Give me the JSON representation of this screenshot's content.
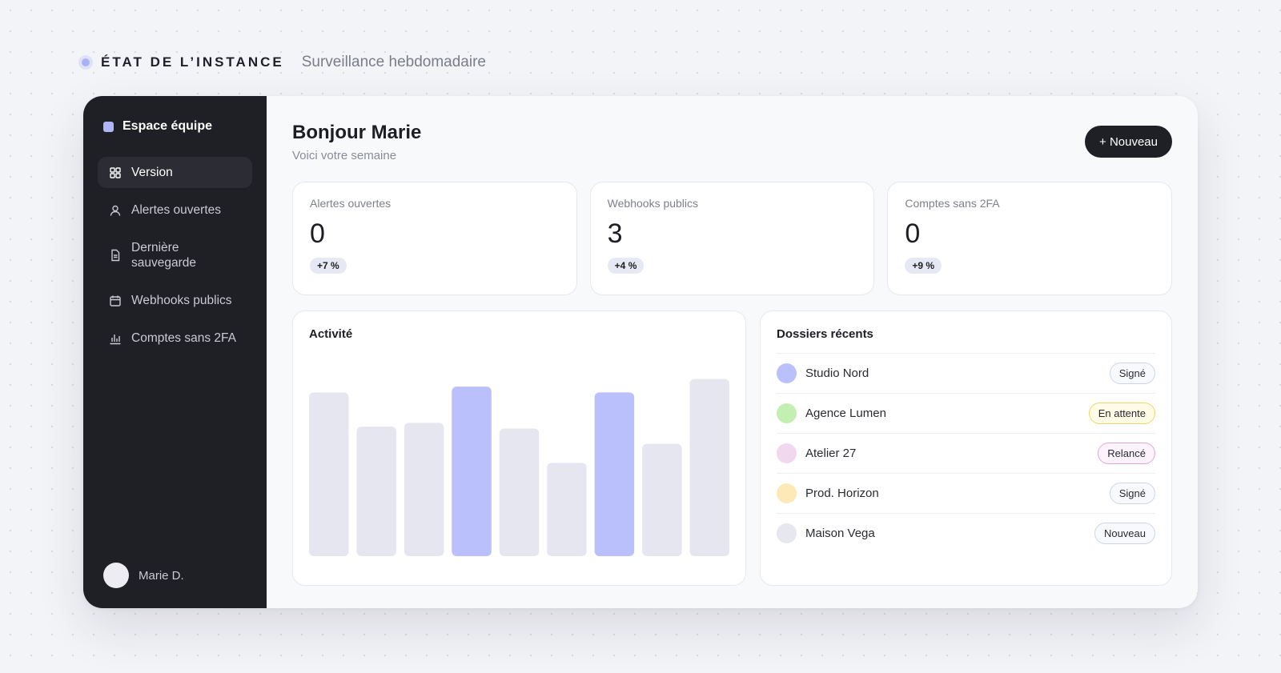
{
  "header": {
    "title": "ÉTAT DE L’INSTANCE",
    "subtitle": "Surveillance hebdomadaire"
  },
  "sidebar": {
    "brand": "Espace équipe",
    "items": [
      {
        "label": "Version",
        "icon": "grid-icon",
        "active": true
      },
      {
        "label": "Alertes ouvertes",
        "icon": "user-icon",
        "active": false
      },
      {
        "label": "Dernière sauvegarde",
        "icon": "document-icon",
        "active": false
      },
      {
        "label": "Webhooks publics",
        "icon": "calendar-icon",
        "active": false
      },
      {
        "label": "Comptes sans 2FA",
        "icon": "bar-chart-icon",
        "active": false
      }
    ],
    "user": "Marie D."
  },
  "main": {
    "greeting": "Bonjour Marie",
    "subtitle": "Voici votre semaine",
    "new_button": "+ Nouveau",
    "stats": [
      {
        "label": "Alertes ouvertes",
        "value": "0",
        "delta": "+7 %"
      },
      {
        "label": "Webhooks publics",
        "value": "3",
        "delta": "+4 %"
      },
      {
        "label": "Comptes sans 2FA",
        "value": "0",
        "delta": "+9 %"
      }
    ],
    "activity": {
      "title": "Activité"
    },
    "records": {
      "title": "Dossiers récents",
      "items": [
        {
          "name": "Studio Nord",
          "status": "Signé",
          "dot_color": "#b9c0fb",
          "badge_border": "#cfd3ee",
          "badge_bg": "#f8f9fd"
        },
        {
          "name": "Agence Lumen",
          "status": "En attente",
          "dot_color": "#c4efb3",
          "badge_border": "#f0d56b",
          "badge_bg": "#fffbe6"
        },
        {
          "name": "Atelier 27",
          "status": "Relancé",
          "dot_color": "#f0d9ee",
          "badge_border": "#e2a5dc",
          "badge_bg": "#fdf3fb"
        },
        {
          "name": "Prod. Horizon",
          "status": "Signé",
          "dot_color": "#fde9b8",
          "badge_border": "#cfd3ee",
          "badge_bg": "#f8f9fd"
        },
        {
          "name": "Maison Vega",
          "status": "Nouveau",
          "dot_color": "#e6e7ef",
          "badge_border": "#cfd3ee",
          "badge_bg": "#f8f9fd"
        }
      ]
    }
  },
  "chart_data": {
    "type": "bar",
    "values": [
      0.86,
      0.68,
      0.7,
      0.89,
      0.67,
      0.49,
      0.86,
      0.59,
      0.93
    ],
    "highlighted": [
      false,
      false,
      false,
      true,
      false,
      false,
      true,
      false,
      false
    ],
    "bar_color": "#e5e6f0",
    "highlight_color": "#b9c0fb"
  }
}
